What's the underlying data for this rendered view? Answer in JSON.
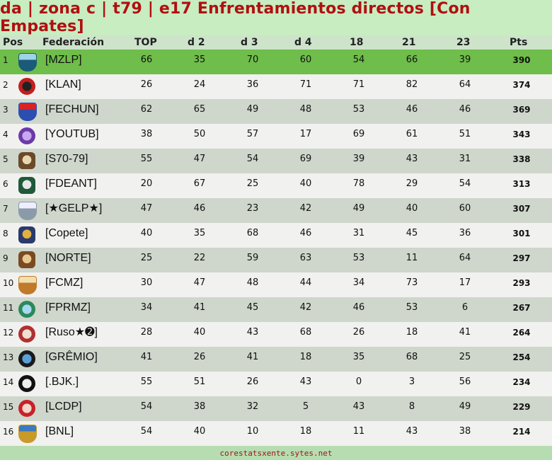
{
  "title": "da | zona c | t79 | e17 Enfrentamientos directos [Con Empates]",
  "headers": {
    "pos": "Pos",
    "fed": "Federación",
    "c1": "TOP",
    "c2": "d  2",
    "c3": "d  3",
    "c4": "d  4",
    "c5": "18",
    "c6": "21",
    "c7": "23",
    "pts": "Pts"
  },
  "colors": {
    "title": "#b01010",
    "leader_row": "#6fbd4a",
    "odd_row": "#f1f1ef",
    "even_row": "#cfd6cc",
    "background": "#b6ddb1"
  },
  "rows": [
    {
      "pos": "1",
      "fed": "[MZLP]",
      "v": [
        "66",
        "35",
        "70",
        "60",
        "54",
        "66",
        "39"
      ],
      "pts": "390",
      "crest": "shield-crest",
      "c1": "#1c5a7a",
      "c2": "#9fd3e8"
    },
    {
      "pos": "2",
      "fed": "[KLAN]",
      "v": [
        "26",
        "24",
        "36",
        "71",
        "71",
        "82",
        "64"
      ],
      "pts": "374",
      "crest": "round-crest",
      "c1": "#c41e1e",
      "c2": "#222"
    },
    {
      "pos": "3",
      "fed": "[FECHUN]",
      "v": [
        "62",
        "65",
        "49",
        "48",
        "53",
        "46",
        "46"
      ],
      "pts": "369",
      "crest": "shield-crest",
      "c1": "#2a4fb0",
      "c2": "#d22"
    },
    {
      "pos": "4",
      "fed": "[YOUTUB]",
      "v": [
        "38",
        "50",
        "57",
        "17",
        "69",
        "61",
        "51"
      ],
      "pts": "343",
      "crest": "round-crest",
      "c1": "#6b3aa8",
      "c2": "#c9a8f0"
    },
    {
      "pos": "5",
      "fed": "[S70-79]",
      "v": [
        "55",
        "47",
        "54",
        "69",
        "39",
        "43",
        "31"
      ],
      "pts": "338",
      "crest": "badge-crest",
      "c1": "#6b4a2a",
      "c2": "#e8d6b0"
    },
    {
      "pos": "6",
      "fed": "[FDEANT]",
      "v": [
        "20",
        "67",
        "25",
        "40",
        "78",
        "29",
        "54"
      ],
      "pts": "313",
      "crest": "badge-crest",
      "c1": "#1f5a3a",
      "c2": "#e8e8e8"
    },
    {
      "pos": "7",
      "fed": "[★GELP★]",
      "v": [
        "47",
        "46",
        "23",
        "42",
        "49",
        "40",
        "60"
      ],
      "pts": "307",
      "crest": "shield-crest",
      "c1": "#8a9aa8",
      "c2": "#eef"
    },
    {
      "pos": "8",
      "fed": "[Copete]",
      "v": [
        "40",
        "35",
        "68",
        "46",
        "31",
        "45",
        "36"
      ],
      "pts": "301",
      "crest": "badge-crest",
      "c1": "#2a3a6a",
      "c2": "#e0b040"
    },
    {
      "pos": "9",
      "fed": "[NORTE]",
      "v": [
        "25",
        "22",
        "59",
        "63",
        "53",
        "11",
        "64"
      ],
      "pts": "297",
      "crest": "badge-crest",
      "c1": "#7a4a22",
      "c2": "#e8c890"
    },
    {
      "pos": "10",
      "fed": "[FCMZ]",
      "v": [
        "30",
        "47",
        "48",
        "44",
        "34",
        "73",
        "17"
      ],
      "pts": "293",
      "crest": "shield-crest",
      "c1": "#c07a2a",
      "c2": "#f0e0b0"
    },
    {
      "pos": "11",
      "fed": "[FPRMZ]",
      "v": [
        "34",
        "41",
        "45",
        "42",
        "46",
        "53",
        "6"
      ],
      "pts": "267",
      "crest": "round-crest",
      "c1": "#2a8a5a",
      "c2": "#a8d8f0"
    },
    {
      "pos": "12",
      "fed": "[Ruso★➋]",
      "v": [
        "28",
        "40",
        "43",
        "68",
        "26",
        "18",
        "41"
      ],
      "pts": "264",
      "crest": "round-crest",
      "c1": "#b03030",
      "c2": "#f0e0d0"
    },
    {
      "pos": "13",
      "fed": "[GRÊMIO]",
      "v": [
        "41",
        "26",
        "41",
        "18",
        "35",
        "68",
        "25"
      ],
      "pts": "254",
      "crest": "round-crest",
      "c1": "#1a1a1a",
      "c2": "#5aa0d8"
    },
    {
      "pos": "14",
      "fed": "[.BJK.]",
      "v": [
        "55",
        "51",
        "26",
        "43",
        "0",
        "3",
        "56"
      ],
      "pts": "234",
      "crest": "round-crest",
      "c1": "#111",
      "c2": "#eee"
    },
    {
      "pos": "15",
      "fed": "[LCDP]",
      "v": [
        "54",
        "38",
        "32",
        "5",
        "43",
        "8",
        "49"
      ],
      "pts": "229",
      "crest": "round-crest",
      "c1": "#c8202a",
      "c2": "#f2d8c8"
    },
    {
      "pos": "16",
      "fed": "[BNL]",
      "v": [
        "54",
        "40",
        "10",
        "18",
        "11",
        "43",
        "38"
      ],
      "pts": "214",
      "crest": "shield-crest",
      "c1": "#c89a2a",
      "c2": "#3a7ac0"
    }
  ],
  "footer": "corestatsxente.sytes.net"
}
